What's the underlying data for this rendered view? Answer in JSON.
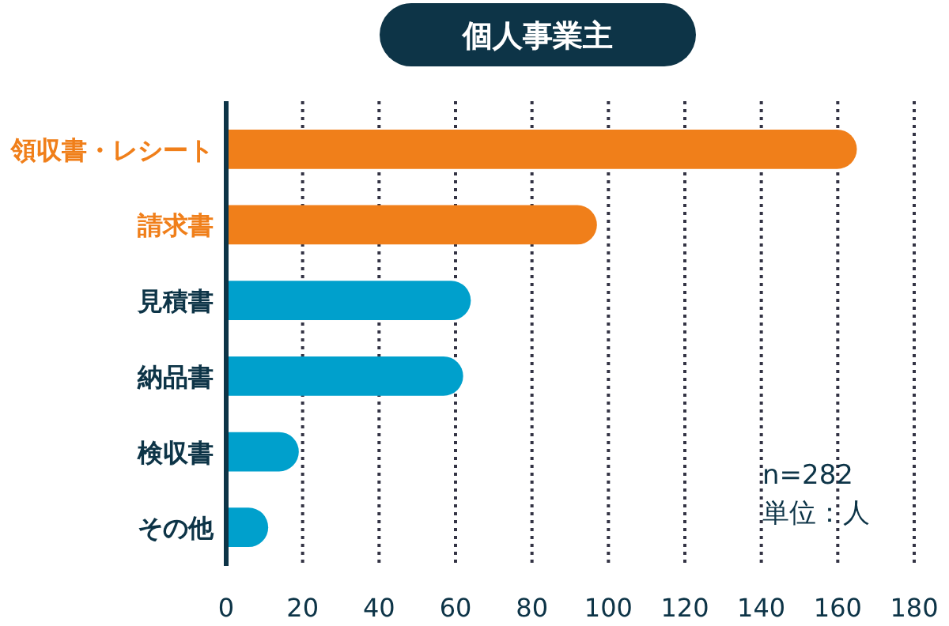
{
  "chart_data": {
    "type": "bar",
    "orientation": "horizontal",
    "title": "個人事業主",
    "categories": [
      "領収書・レシート",
      "請求書",
      "見積書",
      "納品書",
      "検収書",
      "その他"
    ],
    "values": [
      165,
      97,
      64,
      62,
      19,
      11
    ],
    "colors": [
      "#f07f1a",
      "#f07f1a",
      "#00a0cc",
      "#00a0cc",
      "#00a0cc",
      "#00a0cc"
    ],
    "xlim": [
      0,
      180
    ],
    "xticks": [
      0,
      20,
      40,
      60,
      80,
      100,
      120,
      140,
      160,
      180
    ],
    "grid": "x",
    "annotations": [
      "n=282",
      "単位：人"
    ]
  }
}
